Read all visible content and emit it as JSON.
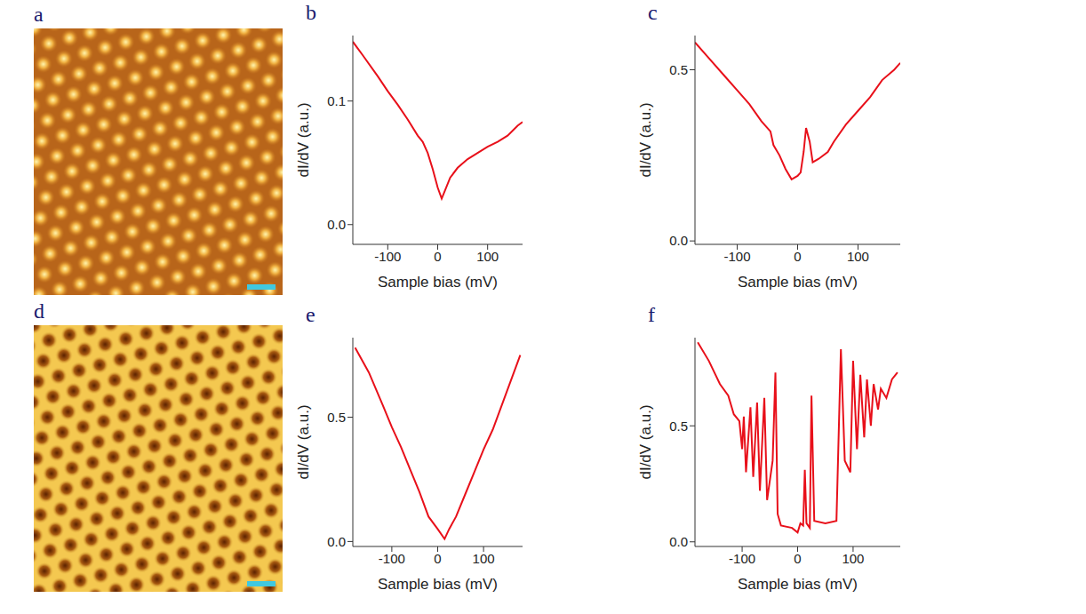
{
  "images": [
    {
      "panel": "a"
    },
    {
      "panel": "d"
    }
  ],
  "chart_data": [
    {
      "panel": "b",
      "type": "line",
      "x_label": "Sample bias (mV)",
      "y_label": "dI/dV (a.u.)",
      "color": "#e8101a",
      "x": [
        -170,
        -150,
        -120,
        -100,
        -80,
        -60,
        -40,
        -30,
        -20,
        -10,
        0,
        8,
        15,
        25,
        40,
        60,
        80,
        100,
        120,
        140,
        160,
        170
      ],
      "values": [
        0.148,
        0.137,
        0.12,
        0.108,
        0.097,
        0.085,
        0.072,
        0.067,
        0.058,
        0.045,
        0.03,
        0.021,
        0.028,
        0.038,
        0.046,
        0.053,
        0.058,
        0.063,
        0.067,
        0.072,
        0.08,
        0.083
      ],
      "xlim": [
        -170,
        170
      ],
      "xticks": [
        -100,
        0,
        100
      ],
      "ylim": [
        -0.016,
        0.153
      ],
      "yticks": [
        {
          "value": 0,
          "label": "0.0"
        },
        0.1
      ]
    },
    {
      "panel": "c",
      "type": "line",
      "x_label": "Sample bias (mV)",
      "y_label": "dI/dV (a.u.)",
      "color": "#e8101a",
      "x": [
        -170,
        -150,
        -120,
        -100,
        -80,
        -60,
        -45,
        -40,
        -30,
        -20,
        -10,
        0,
        5,
        10,
        14,
        20,
        25,
        35,
        50,
        60,
        80,
        100,
        120,
        140,
        160,
        170
      ],
      "values": [
        0.58,
        0.54,
        0.48,
        0.44,
        0.4,
        0.35,
        0.32,
        0.28,
        0.25,
        0.21,
        0.18,
        0.19,
        0.2,
        0.26,
        0.33,
        0.29,
        0.23,
        0.24,
        0.26,
        0.29,
        0.34,
        0.38,
        0.42,
        0.47,
        0.5,
        0.52
      ],
      "xlim": [
        -170,
        170
      ],
      "xticks": [
        -100,
        0,
        100
      ],
      "ylim": [
        -0.01,
        0.6
      ],
      "yticks": [
        {
          "value": 0,
          "label": "0.0"
        },
        0.5
      ]
    },
    {
      "panel": "e",
      "type": "line",
      "x_label": "Sample bias (mV)",
      "y_label": "dI/dV (a.u.)",
      "color": "#e8101a",
      "x": [
        -180,
        -150,
        -120,
        -100,
        -80,
        -60,
        -40,
        -20,
        0,
        15,
        25,
        40,
        60,
        80,
        100,
        120,
        150,
        180
      ],
      "values": [
        0.78,
        0.68,
        0.55,
        0.46,
        0.38,
        0.29,
        0.2,
        0.1,
        0.05,
        0.01,
        0.05,
        0.1,
        0.19,
        0.28,
        0.37,
        0.45,
        0.6,
        0.75
      ],
      "xlim": [
        -185,
        185
      ],
      "xticks": [
        -100,
        0,
        100
      ],
      "ylim": [
        -0.02,
        0.82
      ],
      "yticks": [
        {
          "value": 0,
          "label": "0.0"
        },
        0.5
      ]
    },
    {
      "panel": "f",
      "type": "line",
      "x_label": "Sample bias (mV)",
      "y_label": "dI/dV (a.u.)",
      "color": "#e8101a",
      "x": [
        -180,
        -160,
        -140,
        -125,
        -115,
        -105,
        -100,
        -97,
        -93,
        -85,
        -80,
        -73,
        -68,
        -60,
        -55,
        -45,
        -40,
        -36,
        -30,
        -10,
        0,
        5,
        10,
        13,
        16,
        22,
        25,
        30,
        50,
        70,
        78,
        85,
        95,
        100,
        107,
        113,
        120,
        125,
        132,
        137,
        145,
        150,
        160,
        170,
        180
      ],
      "values": [
        0.86,
        0.78,
        0.68,
        0.63,
        0.55,
        0.52,
        0.4,
        0.54,
        0.3,
        0.58,
        0.28,
        0.6,
        0.22,
        0.62,
        0.18,
        0.35,
        0.73,
        0.12,
        0.07,
        0.06,
        0.04,
        0.08,
        0.07,
        0.31,
        0.08,
        0.06,
        0.63,
        0.09,
        0.08,
        0.09,
        0.83,
        0.35,
        0.3,
        0.78,
        0.4,
        0.72,
        0.45,
        0.7,
        0.5,
        0.68,
        0.57,
        0.66,
        0.62,
        0.7,
        0.73
      ],
      "xlim": [
        -185,
        185
      ],
      "xticks": [
        -100,
        0,
        100
      ],
      "ylim": [
        -0.02,
        0.88
      ],
      "yticks": [
        {
          "value": 0,
          "label": "0.0"
        },
        0.5
      ]
    }
  ]
}
